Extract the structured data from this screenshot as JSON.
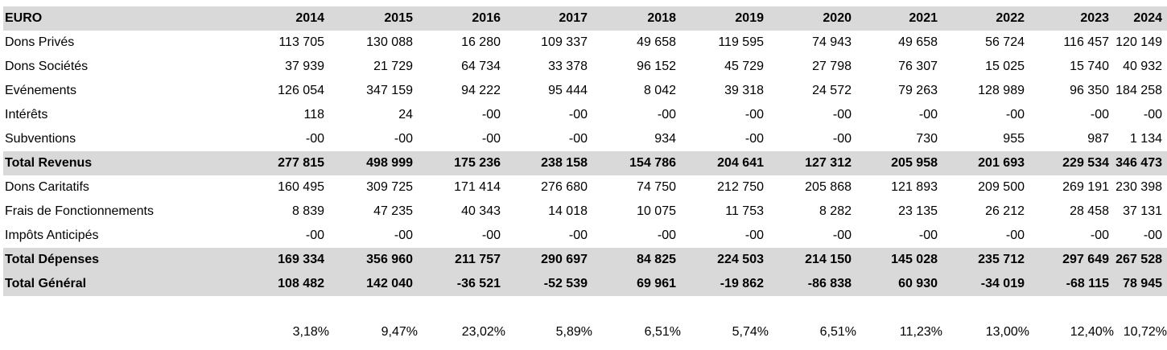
{
  "table": {
    "header_label": "EURO",
    "years": [
      "2014",
      "2015",
      "2016",
      "2017",
      "2018",
      "2019",
      "2020",
      "2021",
      "2022",
      "2023",
      "2024"
    ],
    "rows": [
      {
        "label": "Dons Privés",
        "values": [
          "113 705",
          "130 088",
          "16 280",
          "109 337",
          "49 658",
          "119 595",
          "74 943",
          "49 658",
          "56 724",
          "116 457",
          "120 149"
        ],
        "style": "normal"
      },
      {
        "label": "Dons Sociétés",
        "values": [
          "37 939",
          "21 729",
          "64 734",
          "33 378",
          "96 152",
          "45 729",
          "27 798",
          "76 307",
          "15 025",
          "15 740",
          "40 932"
        ],
        "style": "normal"
      },
      {
        "label": "Evénements",
        "values": [
          "126 054",
          "347 159",
          "94 222",
          "95 444",
          "8 042",
          "39 318",
          "24 572",
          "79 263",
          "128 989",
          "96 350",
          "184 258"
        ],
        "style": "normal"
      },
      {
        "label": "Intérêts",
        "values": [
          "118",
          "24",
          "-00",
          "-00",
          "-00",
          "-00",
          "-00",
          "-00",
          "-00",
          "-00",
          "-00"
        ],
        "style": "normal"
      },
      {
        "label": "Subventions",
        "values": [
          "-00",
          "-00",
          "-00",
          "-00",
          "934",
          "-00",
          "-00",
          "730",
          "955",
          "987",
          "1 134"
        ],
        "style": "normal"
      },
      {
        "label": "Total Revenus",
        "values": [
          "277 815",
          "498 999",
          "175 236",
          "238 158",
          "154 786",
          "204 641",
          "127 312",
          "205 958",
          "201 693",
          "229 534",
          "346 473"
        ],
        "style": "total"
      },
      {
        "label": "Dons Caritatifs",
        "values": [
          "160 495",
          "309 725",
          "171 414",
          "276 680",
          "74 750",
          "212 750",
          "205 868",
          "121 893",
          "209 500",
          "269 191",
          "230 398"
        ],
        "style": "normal"
      },
      {
        "label": "Frais de Fonctionnements",
        "values": [
          "8 839",
          "47 235",
          "40 343",
          "14 018",
          "10 075",
          "11 753",
          "8 282",
          "23 135",
          "26 212",
          "28 458",
          "37 131"
        ],
        "style": "normal"
      },
      {
        "label": "Impôts Anticipés",
        "values": [
          "-00",
          "-00",
          "-00",
          "-00",
          "-00",
          "-00",
          "-00",
          "-00",
          "-00",
          "-00",
          "-00"
        ],
        "style": "normal"
      },
      {
        "label": "Total Dépenses",
        "values": [
          "169 334",
          "356 960",
          "211 757",
          "290 697",
          "84 825",
          "224 503",
          "214 150",
          "145 028",
          "235 712",
          "297 649",
          "267 528"
        ],
        "style": "total"
      },
      {
        "label": "Total Général",
        "values": [
          "108 482",
          "142 040",
          "-36 521",
          "-52 539",
          "69 961",
          "-19 862",
          "-86 838",
          "60 930",
          "-34 019",
          "-68 115",
          "78 945"
        ],
        "style": "total"
      }
    ],
    "percentages": [
      "3,18%",
      "9,47%",
      "23,02%",
      "5,89%",
      "6,51%",
      "5,74%",
      "6,51%",
      "11,23%",
      "13,00%",
      "12,40%",
      "10,72%"
    ]
  }
}
